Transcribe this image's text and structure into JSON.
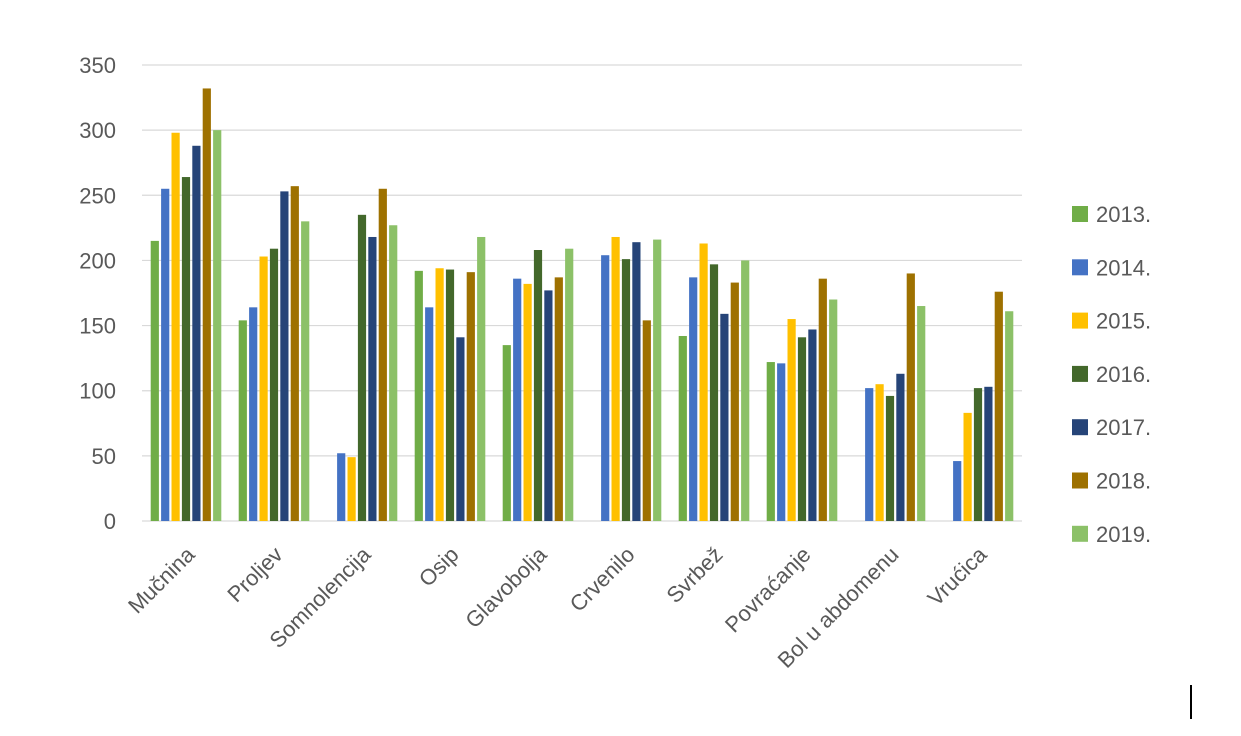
{
  "chart_data": {
    "type": "bar",
    "categories": [
      "Mučnina",
      "Proljev",
      "Somnolencija",
      "Osip",
      "Glavobolja",
      "Crvenilo",
      "Svrbež",
      "Povraćanje",
      "Bol u abdomenu",
      "Vrućica"
    ],
    "series": [
      {
        "name": "2013.",
        "color": "#70ad47",
        "values": [
          215,
          154,
          0,
          192,
          135,
          0,
          142,
          122,
          0,
          0
        ]
      },
      {
        "name": "2014.",
        "color": "#4472c4",
        "values": [
          255,
          164,
          52,
          164,
          186,
          204,
          187,
          121,
          102,
          46
        ]
      },
      {
        "name": "2015.",
        "color": "#ffc000",
        "values": [
          298,
          203,
          49,
          194,
          182,
          218,
          213,
          155,
          105,
          83
        ]
      },
      {
        "name": "2016.",
        "color": "#43682b",
        "values": [
          264,
          209,
          235,
          193,
          208,
          201,
          197,
          141,
          96,
          102
        ]
      },
      {
        "name": "2017.",
        "color": "#264478",
        "values": [
          288,
          253,
          218,
          141,
          177,
          214,
          159,
          147,
          113,
          103
        ]
      },
      {
        "name": "2018.",
        "color": "#9e7100",
        "values": [
          332,
          257,
          255,
          191,
          187,
          154,
          183,
          186,
          190,
          176
        ]
      },
      {
        "name": "2019.",
        "color": "#8cc168",
        "values": [
          300,
          230,
          227,
          218,
          209,
          216,
          200,
          170,
          165,
          161
        ]
      }
    ],
    "yticks": [
      "0",
      "50",
      "100",
      "150",
      "200",
      "250",
      "300",
      "350"
    ],
    "ylim": [
      0,
      350
    ],
    "grid": true,
    "legend_position": "right"
  }
}
